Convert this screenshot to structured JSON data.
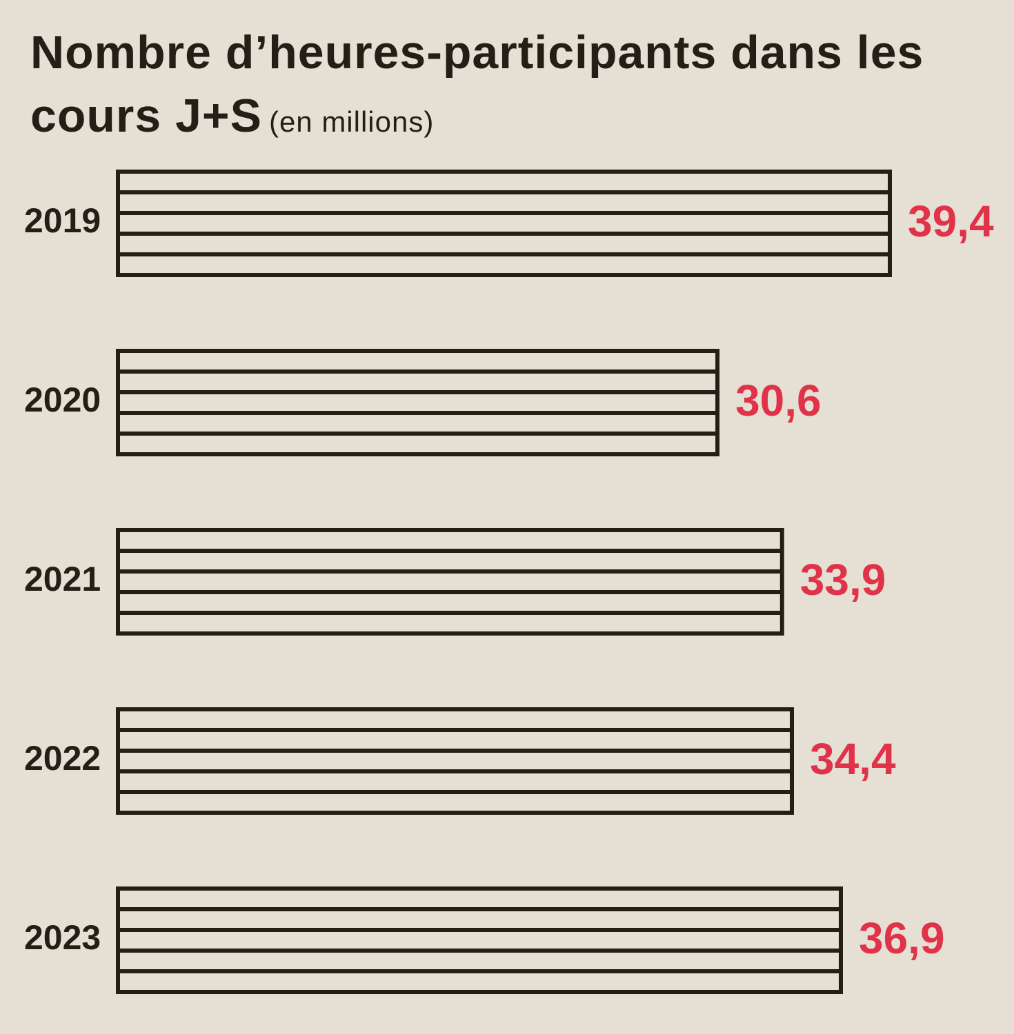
{
  "chart_data": {
    "type": "bar",
    "orientation": "horizontal",
    "title": "Nombre d’heures-participants dans les cours J+S",
    "subtitle": "(en millions)",
    "categories": [
      "2019",
      "2020",
      "2021",
      "2022",
      "2023"
    ],
    "values": [
      39.4,
      30.6,
      33.9,
      34.4,
      36.9
    ],
    "value_labels": [
      "39,4",
      "30,6",
      "33,9",
      "34,4",
      "36,9"
    ],
    "color": "#231f17",
    "label_color": "#e0334a"
  }
}
